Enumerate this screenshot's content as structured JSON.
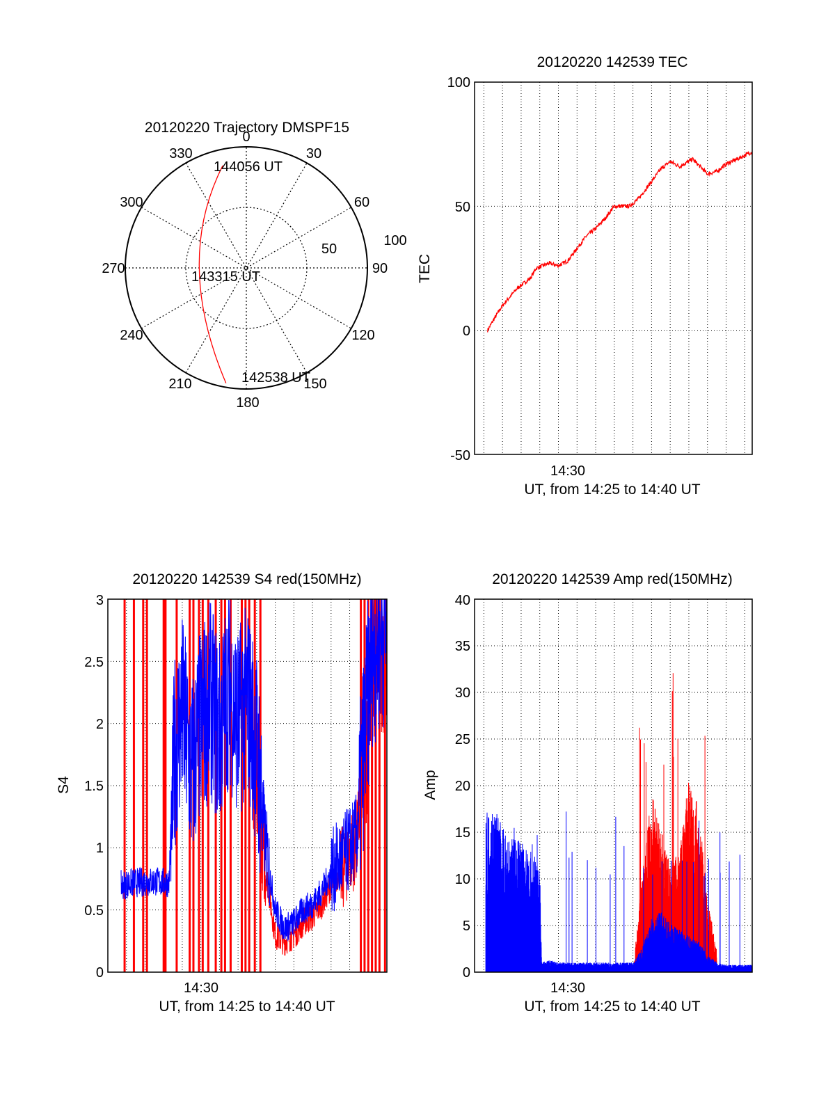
{
  "colors": {
    "red": "#ff0000",
    "blue": "#0000ff",
    "axis": "#000000",
    "grid": "#000000"
  },
  "chart_data": [
    {
      "id": "trajectory",
      "type": "polar-trajectory",
      "title": "20120220 Trajectory DMSPF15",
      "angle_labels": [
        "0",
        "30",
        "60",
        "90",
        "120",
        "150",
        "180",
        "210",
        "240",
        "270",
        "300",
        "330"
      ],
      "radius_labels": [
        "50",
        "100"
      ],
      "points": [
        {
          "label": "144056 UT",
          "azimuth": 347,
          "elevation": 12
        },
        {
          "label": "143315 UT",
          "azimuth": 270,
          "elevation": 55
        },
        {
          "label": "142538 UT",
          "azimuth": 190,
          "elevation": 3
        }
      ],
      "track_color": "#ff0000"
    },
    {
      "id": "tec",
      "type": "line",
      "title": "20120220 142539 TEC",
      "ylabel": "TEC",
      "xlabel": "UT, from 14:25 to 14:40 UT",
      "xtick_label": "14:30",
      "ytick_labels": [
        "-50",
        "0",
        "50",
        "100"
      ],
      "ylim": [
        -50,
        100
      ],
      "xlim_minutes": [
        25.5,
        40.4
      ],
      "series": [
        {
          "color": "#ff0000",
          "x": [
            26.2,
            26.5,
            27.0,
            27.8,
            28.5,
            28.8,
            29.5,
            30.0,
            30.5,
            31.0,
            31.5,
            32.0,
            32.5,
            33.0,
            33.8,
            34.3,
            35.0,
            35.5,
            36.0,
            36.5,
            37.2,
            37.6,
            38.0,
            38.5,
            39.0,
            39.6,
            40.4
          ],
          "y": [
            0,
            4,
            10,
            17,
            21,
            25,
            27,
            26,
            28,
            33,
            38,
            41,
            45,
            50,
            50,
            53,
            60,
            65,
            68,
            66,
            69,
            66,
            63,
            64,
            67,
            69,
            72
          ]
        }
      ]
    },
    {
      "id": "s4",
      "type": "line",
      "title": "20120220 142539 S4 red(150MHz)",
      "ylabel": "S4",
      "xlabel": "UT, from 14:25 to 14:40 UT",
      "xtick_label": "14:30",
      "ytick_labels": [
        "0",
        "0.5",
        "1",
        "1.5",
        "2",
        "2.5",
        "3"
      ],
      "ylim": [
        0,
        3
      ],
      "xlim_minutes": [
        25.0,
        40.0
      ],
      "red_spikes_x": [
        25.9,
        26.4,
        26.9,
        27.1,
        28.0,
        28.1,
        28.7,
        29.4,
        29.6,
        29.9,
        30.1,
        30.4,
        30.8,
        31.1,
        31.3,
        31.6,
        32.2,
        32.4,
        32.6,
        32.9,
        33.2,
        38.6,
        38.8,
        39.0,
        39.2,
        39.4,
        39.6,
        39.9
      ],
      "series": [
        {
          "name": "",
          "color": "#0000ff",
          "x": [
            25.7,
            26.5,
            27.5,
            28.3,
            28.6,
            29.0,
            29.5,
            30.0,
            30.5,
            31.0,
            31.5,
            32.0,
            32.5,
            33.0,
            33.5,
            34.0,
            34.5,
            35.0,
            35.5,
            36.0,
            36.5,
            37.0,
            37.5,
            38.0,
            38.4,
            38.8,
            39.2,
            40.0
          ],
          "y": [
            0.7,
            0.72,
            0.73,
            0.72,
            1.8,
            2.1,
            1.6,
            2.0,
            2.2,
            1.9,
            2.3,
            2.0,
            2.2,
            1.8,
            1.0,
            0.5,
            0.35,
            0.4,
            0.5,
            0.55,
            0.65,
            0.8,
            0.9,
            1.0,
            1.1,
            1.9,
            2.6,
            2.8
          ]
        },
        {
          "name": "",
          "color": "#ff0000",
          "x": [
            32.8,
            33.4,
            34.0,
            34.5,
            35.0,
            35.5,
            36.0,
            36.5,
            37.0,
            37.5,
            38.0,
            38.4,
            38.8,
            39.2,
            40.0
          ],
          "y": [
            1.6,
            0.9,
            0.3,
            0.25,
            0.3,
            0.4,
            0.45,
            0.55,
            0.7,
            0.8,
            0.95,
            1.05,
            1.8,
            2.5,
            2.8
          ]
        }
      ]
    },
    {
      "id": "amp",
      "type": "line",
      "title": "20120220 142539 Amp red(150MHz)",
      "ylabel": "Amp",
      "xlabel": "UT, from 14:25 to 14:40 UT",
      "xtick_label": "14:30",
      "ytick_labels": [
        "0",
        "5",
        "10",
        "15",
        "20",
        "25",
        "30",
        "35",
        "40"
      ],
      "ylim": [
        0,
        40
      ],
      "xlim_minutes": [
        25.5,
        40.4
      ],
      "series": [
        {
          "name": "",
          "color": "#0000ff",
          "x": [
            26.1,
            26.5,
            27.0,
            27.5,
            28.0,
            28.5,
            29.0,
            29.1,
            29.5,
            30.0,
            31.0,
            32.0,
            33.0,
            34.0,
            34.5,
            35.0,
            35.5,
            36.0,
            36.5,
            37.0,
            37.5,
            38.0,
            38.5,
            39.0,
            40.4
          ],
          "y": [
            13,
            14,
            12,
            11,
            11,
            10,
            9,
            0.8,
            1,
            0.8,
            0.8,
            0.8,
            0.8,
            0.8,
            2,
            4.5,
            5,
            4,
            3.5,
            3,
            2.5,
            1.5,
            0.8,
            0.6,
            0.6
          ],
          "peak": [
            17,
            18,
            19,
            15,
            14,
            14,
            13,
            12,
            12
          ]
        },
        {
          "name": "",
          "color": "#ff0000",
          "x": [
            34.0,
            34.5,
            35.0,
            35.5,
            36.0,
            36.5,
            37.0,
            37.5,
            38.0,
            38.5
          ],
          "y": [
            0,
            8,
            15,
            12,
            9,
            10,
            16,
            14,
            6,
            2
          ],
          "peak": [
            35,
            26,
            27
          ]
        }
      ]
    }
  ]
}
